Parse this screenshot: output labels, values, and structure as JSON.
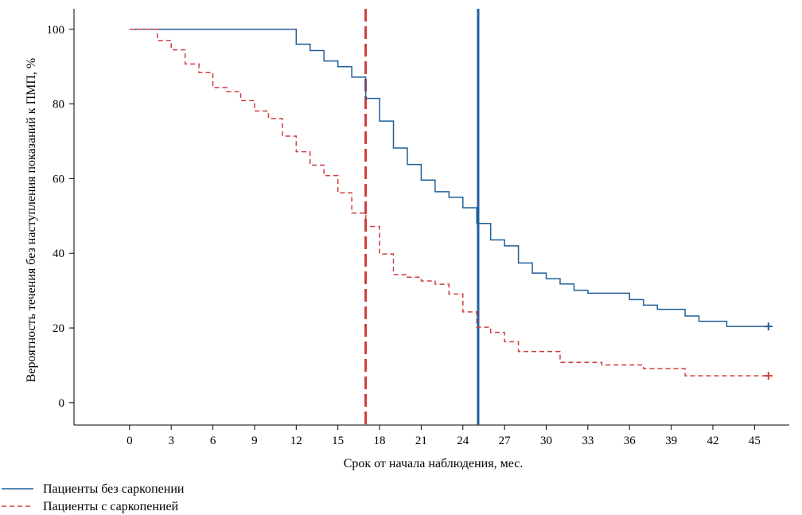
{
  "chart_data": {
    "type": "line",
    "subtype": "kaplan-meier step curves",
    "xlabel": "Срок от начала наблюдения, мес.",
    "ylabel": "Вероятность течения без наступления показаний к ПМП, %",
    "xlim": [
      -4,
      47.5
    ],
    "ylim": [
      -6,
      105.5
    ],
    "xticks": [
      0,
      3,
      6,
      9,
      12,
      15,
      18,
      21,
      24,
      27,
      30,
      33,
      36,
      39,
      42,
      45
    ],
    "yticks": [
      0,
      20,
      40,
      60,
      80,
      100
    ],
    "grid": false,
    "legend_position": "bottom-left",
    "series": [
      {
        "name": "Пациенты без саркопении",
        "color": "#1f5f9a",
        "style": "solid",
        "censored_end": true,
        "x": [
          0,
          12,
          13,
          14,
          15,
          16,
          17,
          18,
          19,
          20,
          21,
          22,
          23,
          24,
          25,
          26,
          27,
          28,
          29,
          30,
          31,
          32,
          33,
          36,
          37,
          38,
          40,
          41,
          43,
          46
        ],
        "y": [
          100,
          96,
          94.3,
          91.5,
          90,
          87.2,
          81.5,
          75.4,
          68.2,
          63.8,
          59.6,
          56.5,
          55,
          52.2,
          48,
          43.6,
          42,
          37.4,
          34.7,
          33.2,
          31.8,
          30.1,
          29.3,
          27.6,
          26.1,
          25,
          23.2,
          21.8,
          20.4,
          20.4
        ]
      },
      {
        "name": "Пациенты с саркопенией",
        "color": "#d03c3c",
        "style": "dashed",
        "censored_end": true,
        "x": [
          0,
          2,
          3,
          4,
          5,
          6,
          7,
          8,
          9,
          10,
          11,
          12,
          13,
          14,
          15,
          16,
          17,
          18,
          19,
          20,
          21,
          22,
          23,
          24,
          25,
          26,
          27,
          28,
          31,
          34,
          37,
          40,
          46
        ],
        "y": [
          100,
          97,
          94.5,
          90.7,
          88.4,
          84.4,
          83.3,
          80.9,
          78.1,
          76.1,
          71.4,
          67.2,
          63.6,
          60.8,
          56.2,
          50.8,
          47.2,
          39.8,
          34.3,
          33.6,
          32.6,
          31.7,
          29.1,
          24.3,
          20.2,
          18.8,
          16.3,
          13.7,
          10.8,
          10.1,
          9.1,
          7.2,
          7.2
        ]
      }
    ],
    "reference_lines": [
      {
        "x": 17,
        "orientation": "vertical",
        "color": "#d03c3c",
        "style": "dashed"
      },
      {
        "x": 25.1,
        "orientation": "vertical",
        "color": "#1f5f9a",
        "style": "solid"
      }
    ]
  }
}
